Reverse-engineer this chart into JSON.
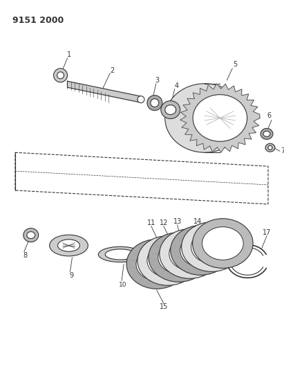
{
  "title": "9151 2000",
  "bg_color": "#ffffff",
  "line_color": "#333333",
  "title_fontsize": 9,
  "label_fontsize": 7,
  "fig_w": 4.11,
  "fig_h": 5.33,
  "dpi": 100
}
